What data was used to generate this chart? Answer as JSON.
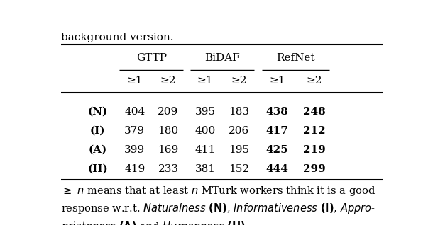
{
  "top_text": "background version.",
  "col_groups": [
    "GTTP",
    "BiDAF",
    "RefNet"
  ],
  "col_headers": [
    "≥1",
    "≥2",
    "≥1",
    "≥2",
    "≥1",
    "≥2"
  ],
  "row_labels": [
    "(N)",
    "(I)",
    "(A)",
    "(H)"
  ],
  "data": [
    [
      "404",
      "209",
      "395",
      "183",
      "438",
      "248"
    ],
    [
      "379",
      "180",
      "400",
      "206",
      "417",
      "212"
    ],
    [
      "399",
      "169",
      "411",
      "195",
      "425",
      "219"
    ],
    [
      "419",
      "233",
      "381",
      "152",
      "444",
      "299"
    ]
  ],
  "bold_cols": [
    4,
    5
  ],
  "background": "#ffffff",
  "text_color": "#000000",
  "fontsize": 11
}
